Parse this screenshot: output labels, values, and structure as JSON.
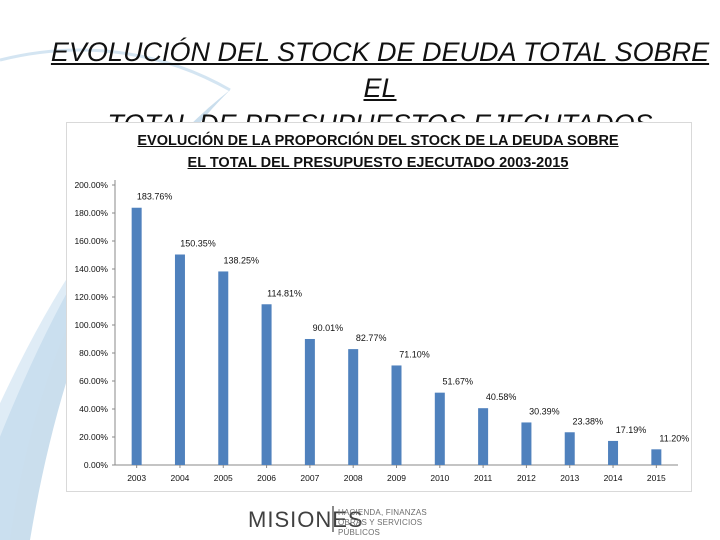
{
  "slide": {
    "title_line1": "EVOLUCIÓN DEL STOCK DE DEUDA TOTAL SOBRE EL",
    "title_line2": "TOTAL DE PRESUPUESTOS EJECUTADOS"
  },
  "footer": {
    "logo_text": "MISIONES",
    "logo_sub_line1": "HACIENDA, FINANZAS",
    "logo_sub_line2": "OBRAS Y SERVICIOS PÚBLICOS"
  },
  "colors": {
    "bar": "#4f81bd",
    "axis": "#888888",
    "swoosh": "#9fc3df"
  },
  "chart_data": {
    "type": "bar",
    "title_line1": "EVOLUCIÓN DE LA PROPORCIÓN DEL  STOCK DE LA DEUDA SOBRE",
    "title_line2": "EL TOTAL DEL PRESUPUESTO EJECUTADO 2003-2015",
    "categories": [
      "2003",
      "2004",
      "2005",
      "2006",
      "2007",
      "2008",
      "2009",
      "2010",
      "2011",
      "2012",
      "2013",
      "2014",
      "2015"
    ],
    "values": [
      183.76,
      150.35,
      138.25,
      114.81,
      90.01,
      82.77,
      71.1,
      51.67,
      40.58,
      30.39,
      23.38,
      17.19,
      11.2
    ],
    "value_labels": [
      "183.76%",
      "150.35%",
      "138.25%",
      "114.81%",
      "90.01%",
      "82.77%",
      "71.10%",
      "51.67%",
      "40.58%",
      "30.39%",
      "23.38%",
      "17.19%",
      "11.20%"
    ],
    "y_ticks": [
      "0.00%",
      "20.00%",
      "40.00%",
      "60.00%",
      "80.00%",
      "100.00%",
      "120.00%",
      "140.00%",
      "160.00%",
      "180.00%",
      "200.00%"
    ],
    "ylim": [
      0,
      200
    ],
    "grid": false,
    "legend": "none"
  }
}
